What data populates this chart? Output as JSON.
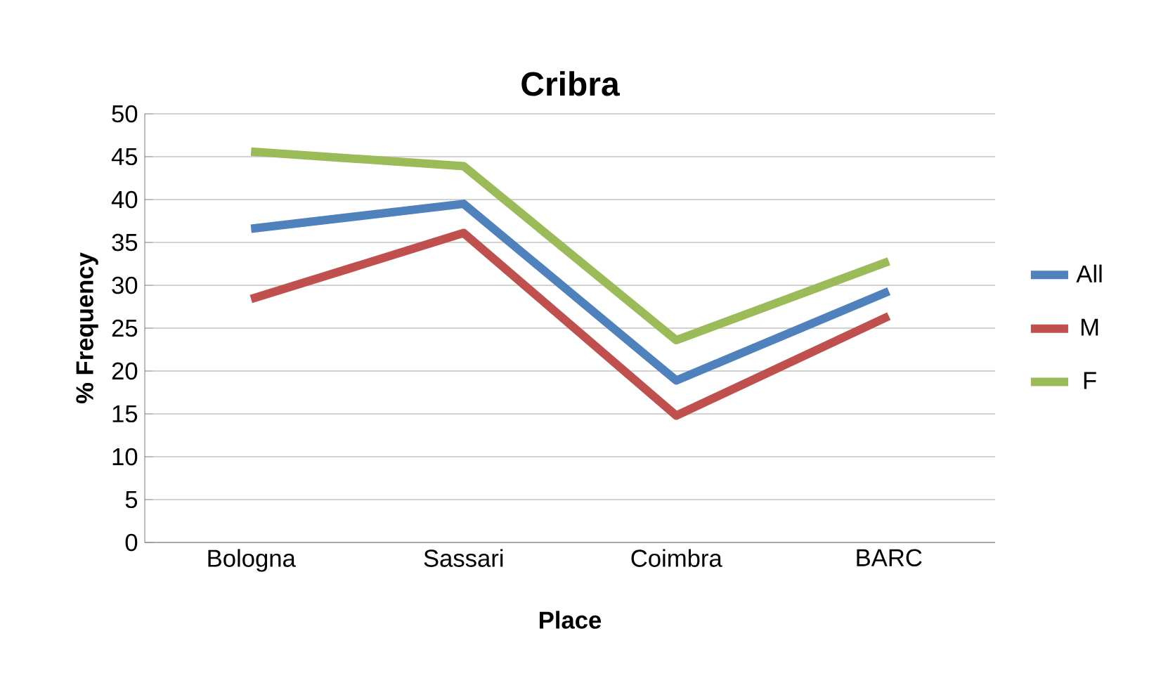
{
  "chart_data": {
    "type": "line",
    "title": "Cribra",
    "xlabel": "Place",
    "ylabel": "% Frequency",
    "categories": [
      "Bologna",
      "Sassari",
      "Coimbra",
      "BARC"
    ],
    "series": [
      {
        "name": "All",
        "color": "#4f81bd",
        "values": [
          36.6,
          39.5,
          18.9,
          29.3
        ]
      },
      {
        "name": "M",
        "color": "#c0504d",
        "values": [
          28.4,
          36.1,
          14.8,
          26.4
        ]
      },
      {
        "name": "F",
        "color": "#9bbb59",
        "values": [
          45.6,
          43.9,
          23.6,
          32.8
        ]
      }
    ],
    "ylim": [
      0,
      50
    ],
    "yticks": [
      0,
      5,
      10,
      15,
      20,
      25,
      30,
      35,
      40,
      45,
      50
    ],
    "grid": "y",
    "legend": "right",
    "marker": "none",
    "line_style": "solid"
  }
}
